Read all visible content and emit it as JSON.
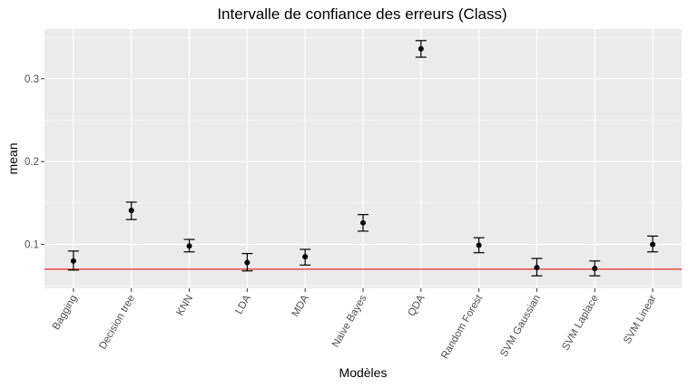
{
  "chart_data": {
    "type": "errorbar",
    "title": "Intervalle de confiance des erreurs (Class)",
    "xlabel": "Modèles",
    "ylabel": "mean",
    "categories": [
      "Bagging",
      "Decision tree",
      "KNN",
      "LDA",
      "MDA",
      "Naive Bayes",
      "QDA",
      "Random Forest",
      "SVM Gaussian",
      "SVM Laplace",
      "SVM Linear"
    ],
    "mean": [
      0.08,
      0.141,
      0.098,
      0.078,
      0.085,
      0.126,
      0.336,
      0.099,
      0.072,
      0.071,
      0.1
    ],
    "lower": [
      0.069,
      0.13,
      0.091,
      0.068,
      0.075,
      0.116,
      0.326,
      0.09,
      0.062,
      0.062,
      0.091
    ],
    "upper": [
      0.092,
      0.151,
      0.106,
      0.089,
      0.094,
      0.136,
      0.346,
      0.108,
      0.083,
      0.08,
      0.11
    ],
    "y_ticks": [
      0.1,
      0.2,
      0.3
    ],
    "y_tick_labels": [
      "0.1",
      "0.2",
      "0.3"
    ],
    "ylim": [
      0.047,
      0.36
    ],
    "reference_line": {
      "y": 0.07,
      "color": "#ee3b3b"
    },
    "grid": true,
    "colors": {
      "panel_background": "#ebebeb",
      "grid_line": "#ffffff",
      "point": "#000000",
      "tick_text": "#4d4d4d",
      "tick_mark": "#333333"
    }
  }
}
